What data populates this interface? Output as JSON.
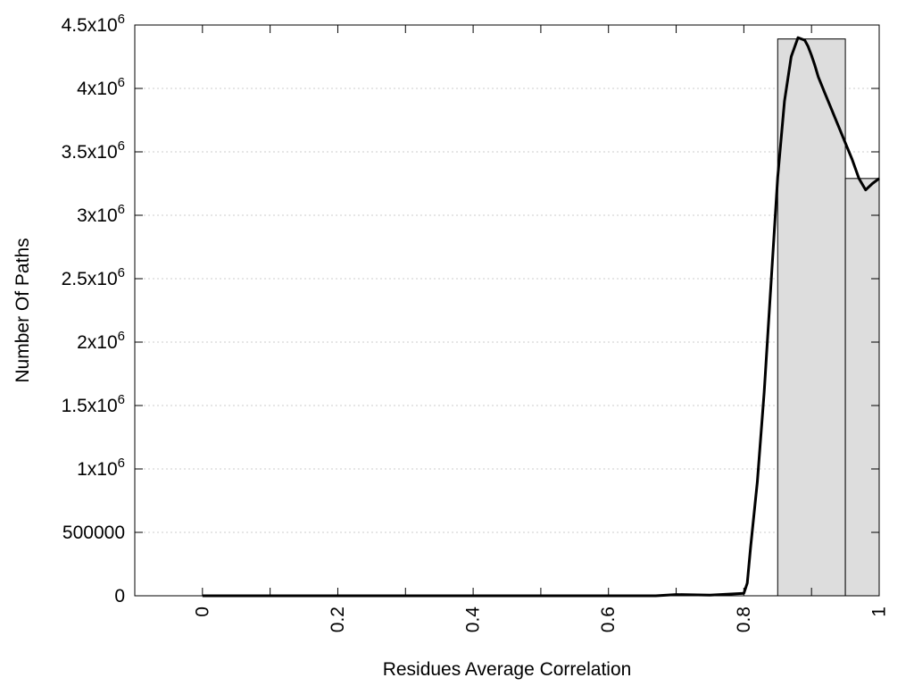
{
  "chart_data": {
    "type": "bar",
    "title": "",
    "xlabel": "Residues Average Correlation",
    "ylabel": "Number Of Paths",
    "xlim": [
      -0.1,
      1.0
    ],
    "ylim": [
      0,
      4500000
    ],
    "grid": true,
    "x_ticks": [
      {
        "value": 0,
        "label": "0"
      },
      {
        "value": 0.2,
        "label": "0.2"
      },
      {
        "value": 0.4,
        "label": "0.4"
      },
      {
        "value": 0.6,
        "label": "0.6"
      },
      {
        "value": 0.8,
        "label": "0.8"
      },
      {
        "value": 1.0,
        "label": "1"
      }
    ],
    "x_minor_ticks": [
      0.1,
      0.3,
      0.5,
      0.7,
      0.9
    ],
    "y_ticks": [
      {
        "value": 0,
        "base": "0",
        "exp": ""
      },
      {
        "value": 500000,
        "base": "500000",
        "exp": ""
      },
      {
        "value": 1000000,
        "base": "1x10",
        "exp": "6"
      },
      {
        "value": 1500000,
        "base": "1.5x10",
        "exp": "6"
      },
      {
        "value": 2000000,
        "base": "2x10",
        "exp": "6"
      },
      {
        "value": 2500000,
        "base": "2.5x10",
        "exp": "6"
      },
      {
        "value": 3000000,
        "base": "3x10",
        "exp": "6"
      },
      {
        "value": 3500000,
        "base": "3.5x10",
        "exp": "6"
      },
      {
        "value": 4000000,
        "base": "4x10",
        "exp": "6"
      },
      {
        "value": 4500000,
        "base": "4.5x10",
        "exp": "6"
      }
    ],
    "bars": [
      {
        "x0": 0.85,
        "x1": 0.95,
        "value": 4390000
      },
      {
        "x0": 0.95,
        "x1": 1.0,
        "value": 3290000
      }
    ],
    "curve": {
      "x": [
        0.0,
        0.1,
        0.2,
        0.3,
        0.4,
        0.5,
        0.6,
        0.67,
        0.7,
        0.75,
        0.8,
        0.805,
        0.81,
        0.82,
        0.83,
        0.84,
        0.85,
        0.86,
        0.87,
        0.88,
        0.89,
        0.895,
        0.9,
        0.905,
        0.91,
        0.92,
        0.93,
        0.94,
        0.95,
        0.96,
        0.97,
        0.98,
        0.99,
        1.0
      ],
      "y": [
        0,
        0,
        0,
        0,
        0,
        0,
        0,
        0,
        10000,
        5000,
        20000,
        100000,
        380000,
        900000,
        1600000,
        2450000,
        3300000,
        3900000,
        4250000,
        4400000,
        4380000,
        4330000,
        4260000,
        4180000,
        4090000,
        3960000,
        3830000,
        3700000,
        3570000,
        3440000,
        3290000,
        3200000,
        3250000,
        3290000
      ]
    },
    "colors": {
      "bar_fill": "#dddddd",
      "bar_stroke": "#000000",
      "curve": "#000000",
      "grid": "#cccccc"
    }
  }
}
